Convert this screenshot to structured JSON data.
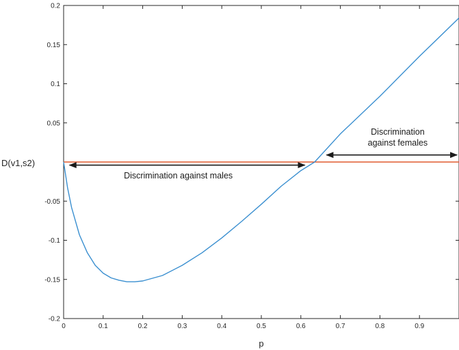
{
  "chart_data": {
    "type": "line",
    "title": "",
    "xlabel": "p",
    "ylabel": "D(v1,s2)",
    "xlim": [
      0,
      1
    ],
    "ylim": [
      -0.2,
      0.2
    ],
    "grid": false,
    "xticks": [
      0,
      0.1,
      0.2,
      0.3,
      0.4,
      0.5,
      0.6,
      0.7,
      0.8,
      0.9
    ],
    "xtick_labels": [
      "0",
      "0.1",
      "0.2",
      "0.3",
      "0.4",
      "0.5",
      "0.6",
      "0.7",
      "0.8",
      "0.9"
    ],
    "yticks": [
      -0.2,
      -0.15,
      -0.1,
      -0.05,
      0,
      0.05,
      0.1,
      0.15,
      0.2
    ],
    "ytick_labels": [
      "-0.2",
      "-0.15",
      "-0.1",
      "-0.05",
      "",
      "0.05",
      "0.1",
      "0.15",
      "0.2"
    ],
    "series": [
      {
        "color": "#3a8fd0",
        "x": [
          0,
          0.01,
          0.02,
          0.04,
          0.06,
          0.08,
          0.1,
          0.12,
          0.14,
          0.16,
          0.18,
          0.2,
          0.25,
          0.3,
          0.35,
          0.4,
          0.45,
          0.5,
          0.55,
          0.6,
          0.635,
          0.7,
          0.8,
          0.9,
          1.0
        ],
        "y": [
          0,
          -0.033,
          -0.058,
          -0.093,
          -0.116,
          -0.132,
          -0.142,
          -0.148,
          -0.151,
          -0.153,
          -0.153,
          -0.152,
          -0.145,
          -0.132,
          -0.116,
          -0.097,
          -0.076,
          -0.054,
          -0.031,
          -0.011,
          0,
          0.036,
          0.084,
          0.135,
          0.184
        ]
      },
      {
        "color": "#e05a2f",
        "x": [
          0,
          1
        ],
        "y": [
          0,
          0
        ]
      }
    ],
    "annotations": [
      {
        "lines": [
          "Discrimination against males"
        ],
        "arrow_x": [
          0.015,
          0.61
        ],
        "arrow_y": -0.004,
        "text_x": 0.29,
        "text_y": -0.021
      },
      {
        "lines": [
          "Discrimination",
          "against females"
        ],
        "arrow_x": [
          0.665,
          0.995
        ],
        "arrow_y": 0.009,
        "text_x": 0.845,
        "text_y": 0.035
      }
    ]
  }
}
